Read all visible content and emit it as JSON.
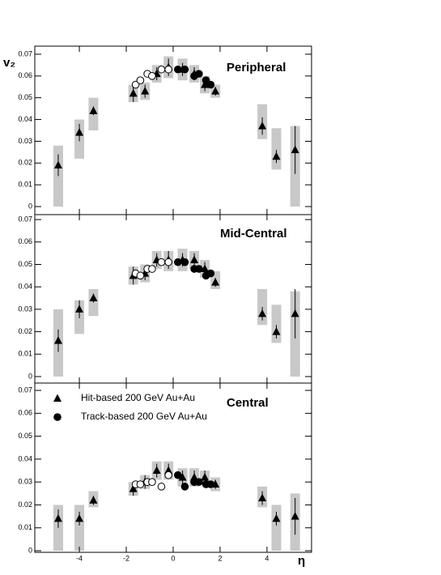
{
  "chart_data": [
    {
      "type": "scatter",
      "label": "Peripheral",
      "y_label": "v₂",
      "xlim": [
        -5.9,
        5.9
      ],
      "ylim": [
        -0.0037,
        0.0737
      ],
      "xticks": [
        -4,
        -2,
        0,
        2,
        4
      ],
      "yticks": [
        0,
        0.01,
        0.02,
        0.03,
        0.04,
        0.05,
        0.06,
        0.07
      ],
      "series": [
        {
          "marker": "triangle",
          "color": "#000000",
          "box_color": "#c8c8c8",
          "x": [
            -4.9,
            -4.0,
            -3.4,
            -1.7,
            -1.2,
            -0.7,
            -0.2,
            0.4,
            0.9,
            1.35,
            1.8,
            3.8,
            4.4,
            5.2
          ],
          "values": [
            0.019,
            0.034,
            0.044,
            0.052,
            0.053,
            0.061,
            0.064,
            0.063,
            0.061,
            0.056,
            0.053,
            0.037,
            0.023,
            0.026
          ],
          "errors": [
            0.005,
            0.004,
            0.002,
            0.004,
            0.003,
            0.003,
            0.004,
            0.003,
            0.003,
            0.003,
            0.002,
            0.004,
            0.003,
            0.011
          ],
          "sys_low": [
            0,
            0.022,
            0.035,
            0.048,
            0.049,
            0.057,
            0.059,
            0.058,
            0.057,
            0.052,
            0.05,
            0.031,
            0.017,
            0
          ],
          "sys_high": [
            0.028,
            0.04,
            0.05,
            0.056,
            0.057,
            0.065,
            0.069,
            0.068,
            0.065,
            0.06,
            0.056,
            0.047,
            0.036,
            0.037
          ]
        },
        {
          "marker": "circle",
          "color": "#000000",
          "x": [
            0.2,
            0.5,
            0.9,
            1.1,
            1.4,
            1.6
          ],
          "values": [
            0.063,
            0.063,
            0.06,
            0.061,
            0.058,
            0.056
          ]
        },
        {
          "marker": "open-circle",
          "color": "#000000",
          "x": [
            -1.6,
            -1.4,
            -1.1,
            -0.9,
            -0.5,
            -0.2
          ],
          "values": [
            0.056,
            0.058,
            0.061,
            0.06,
            0.063,
            0.063
          ]
        }
      ]
    },
    {
      "type": "scatter",
      "label": "Mid-Central",
      "xlim": [
        -5.9,
        5.9
      ],
      "ylim": [
        -0.0029,
        0.0722
      ],
      "xticks": [
        -4,
        -2,
        0,
        2,
        4
      ],
      "yticks": [
        0,
        0.01,
        0.02,
        0.03,
        0.04,
        0.05,
        0.06,
        0.07
      ],
      "series": [
        {
          "marker": "triangle",
          "color": "#000000",
          "box_color": "#c8c8c8",
          "x": [
            -4.9,
            -4.0,
            -3.4,
            -1.7,
            -1.2,
            -0.7,
            -0.2,
            0.4,
            0.9,
            1.35,
            1.8,
            3.8,
            4.4,
            5.2
          ],
          "values": [
            0.016,
            0.03,
            0.035,
            0.045,
            0.046,
            0.052,
            0.052,
            0.052,
            0.052,
            0.048,
            0.042,
            0.028,
            0.02,
            0.028
          ],
          "errors": [
            0.005,
            0.004,
            0.002,
            0.004,
            0.003,
            0.003,
            0.004,
            0.003,
            0.003,
            0.003,
            0.002,
            0.003,
            0.003,
            0.011
          ],
          "sys_low": [
            0,
            0.019,
            0.027,
            0.041,
            0.042,
            0.048,
            0.047,
            0.047,
            0.048,
            0.044,
            0.039,
            0.023,
            0.015,
            0
          ],
          "sys_high": [
            0.03,
            0.034,
            0.039,
            0.049,
            0.05,
            0.056,
            0.056,
            0.057,
            0.056,
            0.052,
            0.047,
            0.039,
            0.032,
            0.038
          ]
        },
        {
          "marker": "circle",
          "color": "#000000",
          "x": [
            0.2,
            0.5,
            0.9,
            1.1,
            1.4,
            1.6
          ],
          "values": [
            0.051,
            0.051,
            0.048,
            0.048,
            0.045,
            0.046
          ]
        },
        {
          "marker": "open-circle",
          "color": "#000000",
          "x": [
            -1.6,
            -1.4,
            -1.1,
            -0.9,
            -0.5,
            -0.2
          ],
          "values": [
            0.046,
            0.045,
            0.048,
            0.048,
            0.051,
            0.051
          ]
        }
      ]
    },
    {
      "type": "scatter",
      "label": "Central",
      "x_label": "η",
      "legend": "upper left",
      "xlim": [
        -5.9,
        5.9
      ],
      "ylim": [
        -0.0007,
        0.0732
      ],
      "xticks": [
        -4,
        -2,
        0,
        2,
        4
      ],
      "yticks": [
        0,
        0.01,
        0.02,
        0.03,
        0.04,
        0.05,
        0.06,
        0.07
      ],
      "series": [
        {
          "name": "Hit-based 200 GeV Au+Au",
          "marker": "triangle",
          "color": "#000000",
          "box_color": "#c8c8c8",
          "x": [
            -4.9,
            -4.0,
            -3.4,
            -1.7,
            -1.2,
            -0.7,
            -0.2,
            0.4,
            0.9,
            1.35,
            1.8,
            3.8,
            4.4,
            5.2
          ],
          "values": [
            0.014,
            0.014,
            0.022,
            0.027,
            0.03,
            0.035,
            0.035,
            0.032,
            0.032,
            0.032,
            0.029,
            0.023,
            0.014,
            0.015
          ],
          "errors": [
            0.004,
            0.003,
            0.002,
            0.003,
            0.003,
            0.003,
            0.003,
            0.003,
            0.003,
            0.003,
            0.002,
            0.003,
            0.003,
            0.008
          ],
          "sys_low": [
            0,
            0,
            0.019,
            0.024,
            0.027,
            0.031,
            0.031,
            0.028,
            0.028,
            0.029,
            0.026,
            0.019,
            0,
            0
          ],
          "sys_high": [
            0.02,
            0.02,
            0.026,
            0.03,
            0.033,
            0.039,
            0.039,
            0.036,
            0.036,
            0.035,
            0.032,
            0.028,
            0.02,
            0.025
          ]
        },
        {
          "name": "Track-based 200 GeV Au+Au",
          "marker": "circle",
          "color": "#000000",
          "x": [
            0.2,
            0.5,
            0.9,
            1.1,
            1.4,
            1.6
          ],
          "values": [
            0.033,
            0.028,
            0.03,
            0.03,
            0.029,
            0.029
          ]
        },
        {
          "marker": "open-circle",
          "color": "#000000",
          "x": [
            -1.6,
            -1.4,
            -1.1,
            -0.9,
            -0.5,
            -0.2
          ],
          "values": [
            0.029,
            0.029,
            0.03,
            0.03,
            0.028,
            0.033
          ]
        }
      ]
    }
  ]
}
